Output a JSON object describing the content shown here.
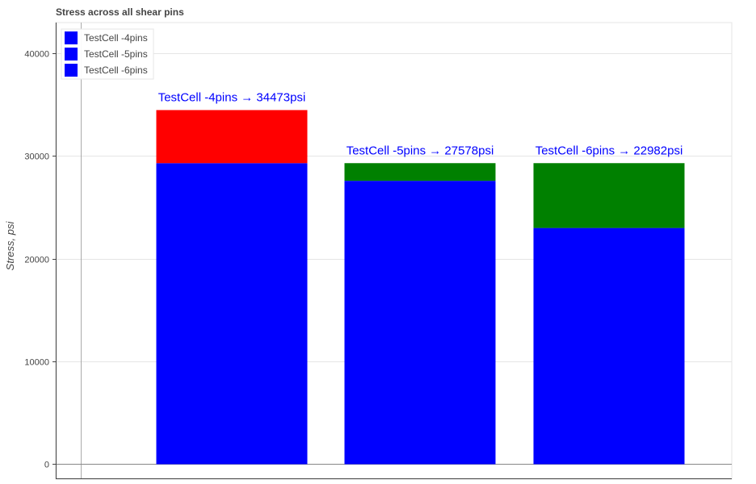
{
  "chart_data": {
    "type": "bar",
    "title": "Stress across all shear pins",
    "ylabel": "Stress, psi",
    "xlabel": "",
    "ylim": [
      -1500,
      43000
    ],
    "yticks": [
      0,
      10000,
      20000,
      30000,
      40000
    ],
    "grid": true,
    "legend_position": "top-left",
    "bars": [
      {
        "name": "TestCell -4pins",
        "label": "TestCell -4pins → 34473psi",
        "base_value": 29300,
        "top_value": 34473,
        "base_color": "#0000ff",
        "top_color": "#ff0000"
      },
      {
        "name": "TestCell -5pins",
        "label": "TestCell -5pins → 27578psi",
        "base_value": 27578,
        "top_value": 29300,
        "base_color": "#0000ff",
        "top_color": "#008000"
      },
      {
        "name": "TestCell -6pins",
        "label": "TestCell -6pins → 22982psi",
        "base_value": 22982,
        "top_value": 29300,
        "base_color": "#0000ff",
        "top_color": "#008000"
      }
    ],
    "legend": [
      {
        "label": "TestCell -4pins",
        "color": "#0000ff"
      },
      {
        "label": "TestCell -5pins",
        "color": "#0000ff"
      },
      {
        "label": "TestCell -6pins",
        "color": "#0000ff"
      }
    ]
  }
}
